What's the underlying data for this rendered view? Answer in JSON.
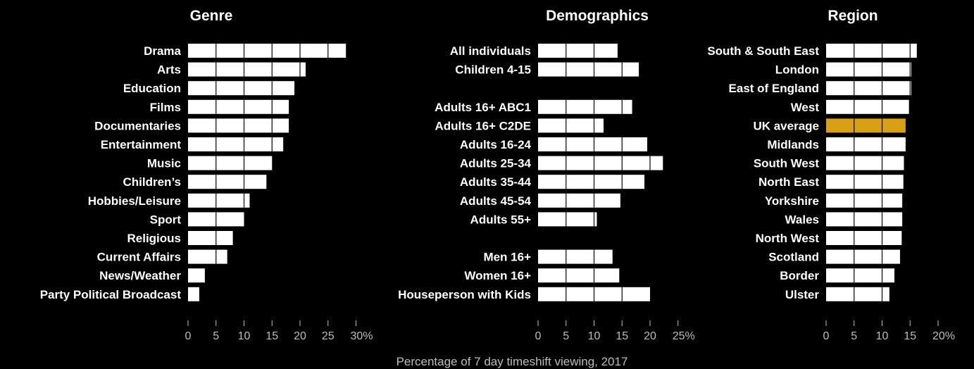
{
  "caption": "Percentage of 7 day timeshift viewing, 2017",
  "colors": {
    "background": "#000000",
    "bar": "#ffffff",
    "highlight": "#d9a015",
    "grid": "#000000",
    "axis": "#bdbdbd"
  },
  "chart_data": [
    {
      "type": "bar",
      "orientation": "horizontal",
      "title": "Genre",
      "categories": [
        "Drama",
        "Arts",
        "Education",
        "Films",
        "Documentaries",
        "Entertainment",
        "Music",
        "Children’s",
        "Hobbies/Leisure",
        "Sport",
        "Religious",
        "Current Affairs",
        "News/Weather",
        "Party Political Broadcast"
      ],
      "values": [
        28.2,
        21,
        19,
        18,
        18,
        17,
        15,
        14,
        11,
        10,
        8,
        7,
        3,
        2
      ],
      "xlim": [
        0,
        30
      ],
      "ticks": [
        0,
        5,
        10,
        15,
        20,
        25,
        30
      ],
      "tick_labels": [
        "0",
        "5",
        "10",
        "15",
        "20",
        "25",
        "30%"
      ],
      "grid": "vertical lines through bars every 5"
    },
    {
      "type": "bar",
      "orientation": "horizontal",
      "title": "Demographics",
      "categories": [
        "All individuals",
        "Children 4-15",
        "",
        "Adults 16+ ABC1",
        "Adults 16+ C2DE",
        "Adults 16-24",
        "Adults 25-34",
        "Adults 35-44",
        "Adults 45-54",
        "Adults 55+",
        "",
        "Men 16+",
        "Women 16+",
        "Houseperson with Kids"
      ],
      "values": [
        14.2,
        18,
        null,
        16.8,
        11.7,
        19.5,
        22.3,
        19,
        14.7,
        10.5,
        null,
        13.3,
        14.5,
        20
      ],
      "xlim": [
        0,
        25
      ],
      "ticks": [
        0,
        5,
        10,
        15,
        20,
        25
      ],
      "tick_labels": [
        "0",
        "5",
        "10",
        "15",
        "20",
        "25%"
      ],
      "grid": "vertical lines through bars every 5"
    },
    {
      "type": "bar",
      "orientation": "horizontal",
      "title": "Region",
      "categories": [
        "South & South East",
        "London",
        "East of England",
        "West",
        "UK average",
        "Midlands",
        "South West",
        "North East",
        "Yorkshire",
        "Wales",
        "North West",
        "Scotland",
        "Border",
        "Ulster"
      ],
      "values": [
        16.2,
        15.2,
        15.2,
        14.8,
        14.2,
        14.2,
        13.9,
        13.8,
        13.6,
        13.6,
        13.5,
        13.2,
        12.2,
        11.3
      ],
      "highlight": "UK average",
      "xlim": [
        0,
        20
      ],
      "ticks": [
        0,
        5,
        10,
        15,
        20
      ],
      "tick_labels": [
        "0",
        "5",
        "10",
        "15",
        "20%"
      ],
      "grid": "vertical lines through bars every 5"
    }
  ]
}
